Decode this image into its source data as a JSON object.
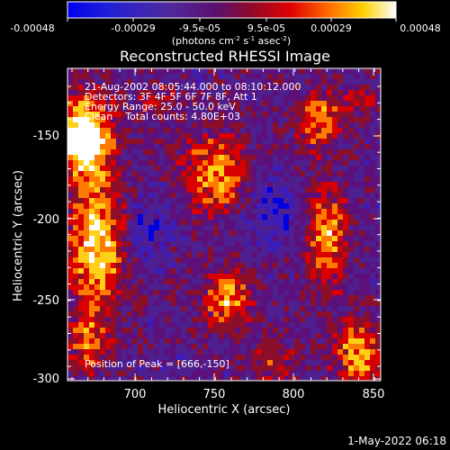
{
  "colorbar": {
    "ticks": [
      "-0.00048",
      "-0.00029",
      "-9.5e-05",
      "9.5e-05",
      "0.00029",
      "0.00048"
    ],
    "unit_main": "(photons cm",
    "unit_sup1": "-2",
    "unit_mid1": " s",
    "unit_sup2": "-1",
    "unit_mid2": " asec",
    "unit_sup3": "-2",
    "unit_end": ")"
  },
  "title": "Reconstructed RHESSI Image",
  "annotations": {
    "line1": "21-Aug-2002 08:05:44.000 to 08:10:12.000",
    "line2": "Detectors: 3F 4F 5F 6F 7F 8F, Att 1",
    "line3": "Energy Range: 25.0 - 50.0 keV",
    "line4": "Clean    Total counts: 4.80E+03",
    "peak": "Position of Peak = [666,-150]"
  },
  "axes": {
    "xlabel": "Heliocentric X (arcsec)",
    "ylabel": "Heliocentric Y (arcsec)",
    "xticks": [
      "700",
      "750",
      "800",
      "850"
    ],
    "yticks": [
      "-150",
      "-200",
      "-250",
      "-300"
    ],
    "xlim": [
      662,
      853
    ],
    "ylim": [
      -300,
      -125
    ]
  },
  "footer": {
    "timestamp": "1-May-2022 06:18"
  },
  "colors": {
    "background": "#000000",
    "foreground": "#ffffff",
    "colormap": [
      "#0000e0",
      "#3d1db8",
      "#4e1f8e",
      "#5d107a",
      "#8b0f2a",
      "#d80000",
      "#ff7a00",
      "#ffd018",
      "#ffffff"
    ]
  }
}
